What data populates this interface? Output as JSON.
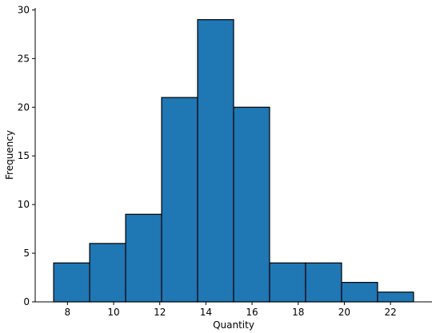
{
  "chart_data": {
    "type": "histogram",
    "title": "",
    "xlabel": "Quantity",
    "ylabel": "Frequency",
    "bin_edges": [
      7.4,
      8.96,
      10.52,
      12.08,
      13.64,
      15.2,
      16.76,
      18.32,
      19.88,
      21.44,
      23.0
    ],
    "values": [
      4,
      6,
      9,
      21,
      29,
      20,
      4,
      4,
      2,
      1
    ],
    "xlim": [
      6.6,
      23.8
    ],
    "ylim": [
      0,
      30.2
    ],
    "xticks": [
      8,
      10,
      12,
      14,
      16,
      18,
      20,
      22
    ],
    "yticks": [
      0,
      5,
      10,
      15,
      20,
      25,
      30
    ],
    "bar_color": "#1f77b4",
    "edge_color": "#000000",
    "grid": false,
    "legend": "none"
  }
}
